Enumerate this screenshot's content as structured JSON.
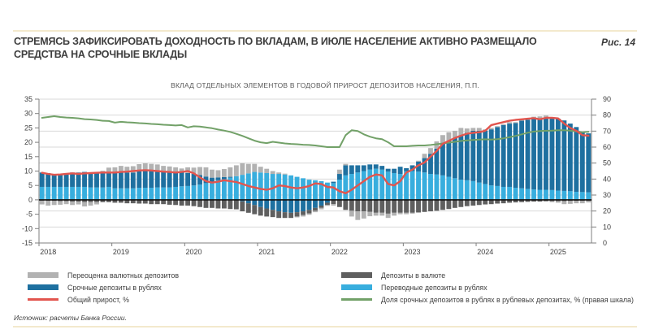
{
  "page": {
    "headline": "СТРЕМЯСЬ ЗАФИКСИРОВАТЬ ДОХОДНОСТЬ ПО ВКЛАДАМ, В ИЮЛЕ НАСЕЛЕНИЕ АКТИВНО РАЗМЕЩАЛО СРЕДСТВА НА СРОЧНЫЕ ВКЛАДЫ",
    "figure_label": "Рис. 14",
    "source": "Источник: расчеты Банка России."
  },
  "legend": {
    "items": [
      {
        "label": "Переоценка валютных депозитов",
        "color": "#b2b2b2",
        "type": "bar"
      },
      {
        "label": "Срочные депозиты в рублях",
        "color": "#1e70a0",
        "type": "bar"
      },
      {
        "label": "Общий прирост, %",
        "color": "#e2554e",
        "type": "line"
      },
      {
        "label": "Депозиты в валюте",
        "color": "#5f5f5f",
        "type": "bar"
      },
      {
        "label": "Переводные депозиты в рублях",
        "color": "#38aede",
        "type": "bar"
      },
      {
        "label": "Доля срочных депозитов в рублях в рублевых депозитах, % (правая шкала)",
        "color": "#72a168",
        "type": "line"
      }
    ]
  },
  "chart_data": {
    "type": "bar",
    "subtype": "stacked-bars-with-lines",
    "title": "ВКЛАД ОТДЕЛЬНЫХ ЭЛЕМЕНТОВ В ГОДОВОЙ ПРИРОСТ ДЕПОЗИТОВ НАСЕЛЕНИЯ, П.П.",
    "frequency": "monthly",
    "x_start": "2018-01",
    "x_end": "2025-07",
    "n_points": 91,
    "year_labels": [
      "2018",
      "2019",
      "2020",
      "2021",
      "2022",
      "2023",
      "2024",
      "2025"
    ],
    "left_axis": {
      "min": -15,
      "max": 35,
      "ticks": [
        35,
        30,
        25,
        20,
        15,
        10,
        5,
        0,
        -5,
        -10,
        -15
      ]
    },
    "right_axis": {
      "min": 0,
      "max": 90,
      "ticks": [
        90,
        80,
        70,
        60,
        50,
        40,
        30,
        20,
        10,
        0
      ]
    },
    "grid": "horizontal-right-axis",
    "legend_position": "bottom",
    "series": [
      {
        "name": "Переводные депозиты в рублях",
        "color": "#38aede",
        "values": [
          4.5,
          4.5,
          4.5,
          4.5,
          4.5,
          4.5,
          4.5,
          4.5,
          4.3,
          4.3,
          4.3,
          4.5,
          4.0,
          4.0,
          4.0,
          4.0,
          4.2,
          4.2,
          4.2,
          4.3,
          4.3,
          4.3,
          4.5,
          4.7,
          4.8,
          5.0,
          5.3,
          5.8,
          6.2,
          6.8,
          7.2,
          7.7,
          8.2,
          8.7,
          9.2,
          9.7,
          9.5,
          9.3,
          9.0,
          9.0,
          8.8,
          8.5,
          8.0,
          7.5,
          7.0,
          6.8,
          6.5,
          6.0,
          5.8,
          7.0,
          8.5,
          9.0,
          9.5,
          10.0,
          10.5,
          10.8,
          10.5,
          9.8,
          9.3,
          9.0,
          10.0,
          10.0,
          9.8,
          9.5,
          9.0,
          8.8,
          8.5,
          8.0,
          7.5,
          7.0,
          6.8,
          6.5,
          6.0,
          5.5,
          5.0,
          4.8,
          4.5,
          4.5,
          4.2,
          4.0,
          3.8,
          3.6,
          3.5,
          3.5,
          3.4,
          3.2,
          3.1,
          3.0,
          2.8,
          2.7,
          2.6
        ]
      },
      {
        "name": "Срочные депозиты в рублях",
        "color": "#1e70a0",
        "values": [
          5.0,
          4.8,
          4.5,
          4.5,
          4.8,
          5.0,
          5.0,
          5.2,
          5.2,
          5.3,
          5.3,
          5.2,
          5.3,
          5.5,
          5.5,
          5.5,
          5.7,
          5.8,
          5.8,
          5.7,
          5.5,
          5.5,
          5.3,
          5.0,
          4.5,
          4.0,
          3.3,
          2.3,
          1.5,
          1.0,
          0.7,
          0.3,
          0.0,
          -0.5,
          -1.2,
          -1.8,
          -2.5,
          -3.0,
          -3.5,
          -4.0,
          -4.3,
          -4.5,
          -4.3,
          -4.0,
          -3.5,
          -2.8,
          -2.0,
          -1.0,
          0.5,
          2.0,
          3.5,
          3.0,
          2.5,
          2.0,
          1.8,
          1.5,
          1.3,
          1.0,
          1.5,
          2.5,
          1.0,
          2.0,
          3.5,
          5.0,
          7.0,
          9.0,
          11.0,
          12.5,
          14.0,
          15.5,
          16.5,
          17.5,
          18.0,
          18.5,
          19.5,
          20.5,
          21.5,
          22.0,
          22.5,
          23.5,
          24.0,
          24.5,
          24.5,
          25.0,
          25.0,
          25.0,
          24.5,
          23.5,
          22.5,
          21.0,
          20.5
        ]
      },
      {
        "name": "Депозиты в валюте",
        "color": "#5f5f5f",
        "values": [
          -0.3,
          -0.4,
          -0.4,
          -0.5,
          -0.5,
          -0.6,
          -0.6,
          -0.8,
          -0.8,
          -0.8,
          -0.8,
          -0.8,
          -1.0,
          -1.0,
          -1.2,
          -1.2,
          -1.3,
          -1.3,
          -1.5,
          -1.5,
          -1.5,
          -1.7,
          -1.8,
          -2.0,
          -2.0,
          -2.2,
          -2.5,
          -2.8,
          -2.8,
          -3.0,
          -3.0,
          -3.2,
          -3.3,
          -3.5,
          -3.3,
          -3.2,
          -3.0,
          -2.8,
          -2.5,
          -2.3,
          -2.0,
          -1.8,
          -1.5,
          -1.3,
          -1.2,
          -1.0,
          -0.8,
          -0.8,
          -1.5,
          -2.5,
          -3.5,
          -3.8,
          -4.0,
          -4.0,
          -4.2,
          -4.5,
          -4.5,
          -4.8,
          -4.5,
          -4.5,
          -4.5,
          -4.5,
          -4.4,
          -4.2,
          -4.0,
          -3.8,
          -3.5,
          -3.2,
          -2.8,
          -2.5,
          -2.2,
          -2.0,
          -1.8,
          -1.6,
          -1.5,
          -1.3,
          -1.2,
          -1.0,
          -0.9,
          -0.8,
          -0.7,
          -0.6,
          -0.6,
          -0.5,
          -0.5,
          -0.5,
          -0.5,
          -0.4,
          -0.4,
          -0.4,
          -0.4
        ]
      },
      {
        "name": "Переоценка валютных депозитов",
        "color": "#b2b2b2",
        "values": [
          -1.3,
          -1.6,
          -1.4,
          -1.2,
          -1.0,
          -1.2,
          -1.0,
          -1.5,
          -1.2,
          -0.8,
          0.5,
          1.5,
          2.0,
          2.3,
          2.0,
          2.2,
          2.5,
          2.7,
          2.5,
          2.3,
          2.0,
          1.8,
          1.5,
          1.2,
          2.0,
          2.2,
          2.8,
          3.2,
          2.8,
          2.5,
          2.8,
          3.3,
          3.8,
          4.0,
          3.3,
          2.8,
          2.0,
          1.5,
          1.0,
          0.5,
          0.3,
          0.0,
          -0.3,
          -0.5,
          -0.5,
          -0.5,
          -0.5,
          -0.3,
          -0.5,
          1.5,
          0.5,
          -2.0,
          -3.0,
          -2.5,
          -1.5,
          -1.0,
          -1.0,
          -1.5,
          -1.0,
          -0.5,
          -0.5,
          -0.3,
          0.3,
          1.5,
          2.0,
          2.5,
          3.0,
          3.0,
          2.5,
          2.5,
          1.5,
          1.0,
          1.0,
          0.5,
          0.5,
          0.3,
          0.3,
          0.5,
          0.3,
          0.5,
          0.5,
          0.8,
          1.0,
          0.8,
          -0.3,
          -0.5,
          -1.0,
          -1.0,
          -0.8,
          -0.8,
          -0.5
        ]
      }
    ],
    "lines": [
      {
        "name": "Общий прирост, %",
        "color": "#e2554e",
        "axis": "left",
        "values": [
          9.4,
          9.0,
          8.7,
          8.8,
          9.0,
          9.2,
          9.0,
          9.2,
          9.3,
          9.4,
          9.5,
          9.5,
          9.5,
          9.7,
          9.8,
          10.0,
          10.2,
          10.3,
          10.2,
          10.0,
          9.8,
          9.7,
          9.5,
          9.7,
          10.0,
          9.2,
          7.8,
          6.5,
          6.0,
          6.3,
          6.8,
          6.5,
          6.2,
          5.5,
          4.8,
          4.3,
          3.8,
          3.5,
          4.0,
          5.0,
          4.8,
          4.3,
          4.0,
          4.3,
          4.8,
          5.7,
          5.5,
          4.5,
          4.3,
          3.0,
          2.3,
          3.5,
          5.0,
          6.5,
          8.0,
          8.8,
          8.5,
          5.5,
          5.0,
          6.5,
          9.5,
          10.5,
          12.0,
          13.0,
          15.0,
          17.0,
          19.5,
          20.5,
          21.5,
          22.3,
          23.0,
          23.3,
          23.5,
          24.0,
          26.0,
          26.5,
          27.0,
          27.5,
          27.8,
          28.0,
          28.2,
          28.4,
          28.0,
          28.5,
          28.5,
          28.3,
          26.5,
          25.0,
          24.0,
          22.5,
          22.3
        ]
      },
      {
        "name": "Доля срочных депозитов в рублях в рублевых депозитах, % (правая шкала)",
        "color": "#72a168",
        "axis": "right",
        "values": [
          78.3,
          78.8,
          79.3,
          78.8,
          78.5,
          78.3,
          78.0,
          77.5,
          77.3,
          77.0,
          76.5,
          76.3,
          75.3,
          75.8,
          75.5,
          75.3,
          75.0,
          74.8,
          74.5,
          74.3,
          74.0,
          73.8,
          73.5,
          73.8,
          72.3,
          73.0,
          72.8,
          72.3,
          71.8,
          71.0,
          70.3,
          69.5,
          68.3,
          67.0,
          65.5,
          64.0,
          63.0,
          62.5,
          63.3,
          62.8,
          62.3,
          62.0,
          61.8,
          61.5,
          61.3,
          61.0,
          60.5,
          60.0,
          60.0,
          60.0,
          67.5,
          70.5,
          70.0,
          68.0,
          66.5,
          65.5,
          65.0,
          63.0,
          60.5,
          60.5,
          60.5,
          60.8,
          61.0,
          61.0,
          61.3,
          61.8,
          62.3,
          62.8,
          63.3,
          63.8,
          64.2,
          64.5,
          64.7,
          64.9,
          64.7,
          65.0,
          65.5,
          66.2,
          67.0,
          68.0,
          69.0,
          69.7,
          70.0,
          70.2,
          70.3,
          70.5,
          70.5,
          70.3,
          69.8,
          69.3,
          69.6
        ]
      }
    ]
  }
}
